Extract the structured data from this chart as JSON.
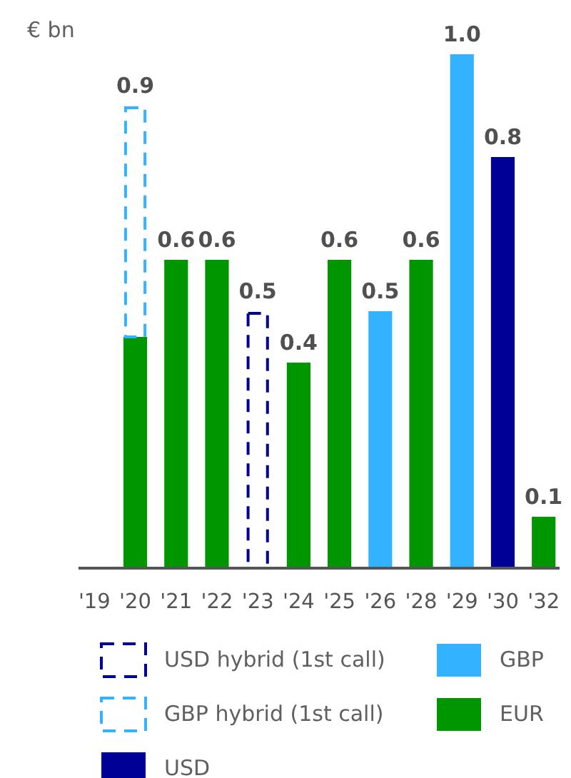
{
  "chart_data": {
    "type": "bar",
    "stacked": true,
    "ylabel": "€ bn",
    "legend": "bottom",
    "categories": [
      "'19",
      "'20",
      "'21",
      "'22",
      "'23",
      "'24",
      "'25",
      "'26",
      "'28",
      "'29",
      "'30",
      "'32"
    ],
    "series": [
      {
        "name": "EUR",
        "color": "#009600",
        "values": [
          null,
          0.45,
          0.6,
          0.6,
          null,
          0.4,
          0.6,
          null,
          0.6,
          null,
          null,
          0.1
        ],
        "value_labels": [
          null,
          null,
          "0.6",
          "0.6",
          null,
          "0.4",
          "0.6",
          null,
          "0.6",
          null,
          null,
          "0.1"
        ]
      },
      {
        "name": "GBP",
        "color": "#33b3ff",
        "values": [
          null,
          null,
          null,
          null,
          null,
          null,
          null,
          0.5,
          null,
          1.0,
          null,
          null
        ],
        "value_labels": [
          null,
          null,
          null,
          null,
          null,
          null,
          null,
          "0.5",
          null,
          "1.0",
          null,
          null
        ]
      },
      {
        "name": "USD",
        "color": "#000096",
        "values": [
          null,
          null,
          null,
          null,
          null,
          null,
          null,
          null,
          null,
          null,
          0.8,
          null
        ],
        "value_labels": [
          null,
          null,
          null,
          null,
          null,
          null,
          null,
          null,
          null,
          null,
          "0.8",
          null
        ]
      },
      {
        "name": "GBP hybrid (1st call)",
        "color": "#33b3ff",
        "line_style": "dashed",
        "values": [
          null,
          0.45,
          null,
          null,
          null,
          null,
          null,
          null,
          null,
          null,
          null,
          null
        ]
      },
      {
        "name": "USD hybrid (1st call)",
        "color": "#000096",
        "line_style": "dashed",
        "values": [
          null,
          null,
          null,
          null,
          0.5,
          null,
          null,
          null,
          null,
          null,
          null,
          null
        ],
        "value_labels": [
          null,
          null,
          null,
          null,
          "0.5",
          null,
          null,
          null,
          null,
          null,
          null,
          null
        ]
      }
    ],
    "totals": [
      null,
      "0.9",
      null,
      null,
      null,
      null,
      null,
      null,
      null,
      null,
      null,
      null
    ]
  }
}
